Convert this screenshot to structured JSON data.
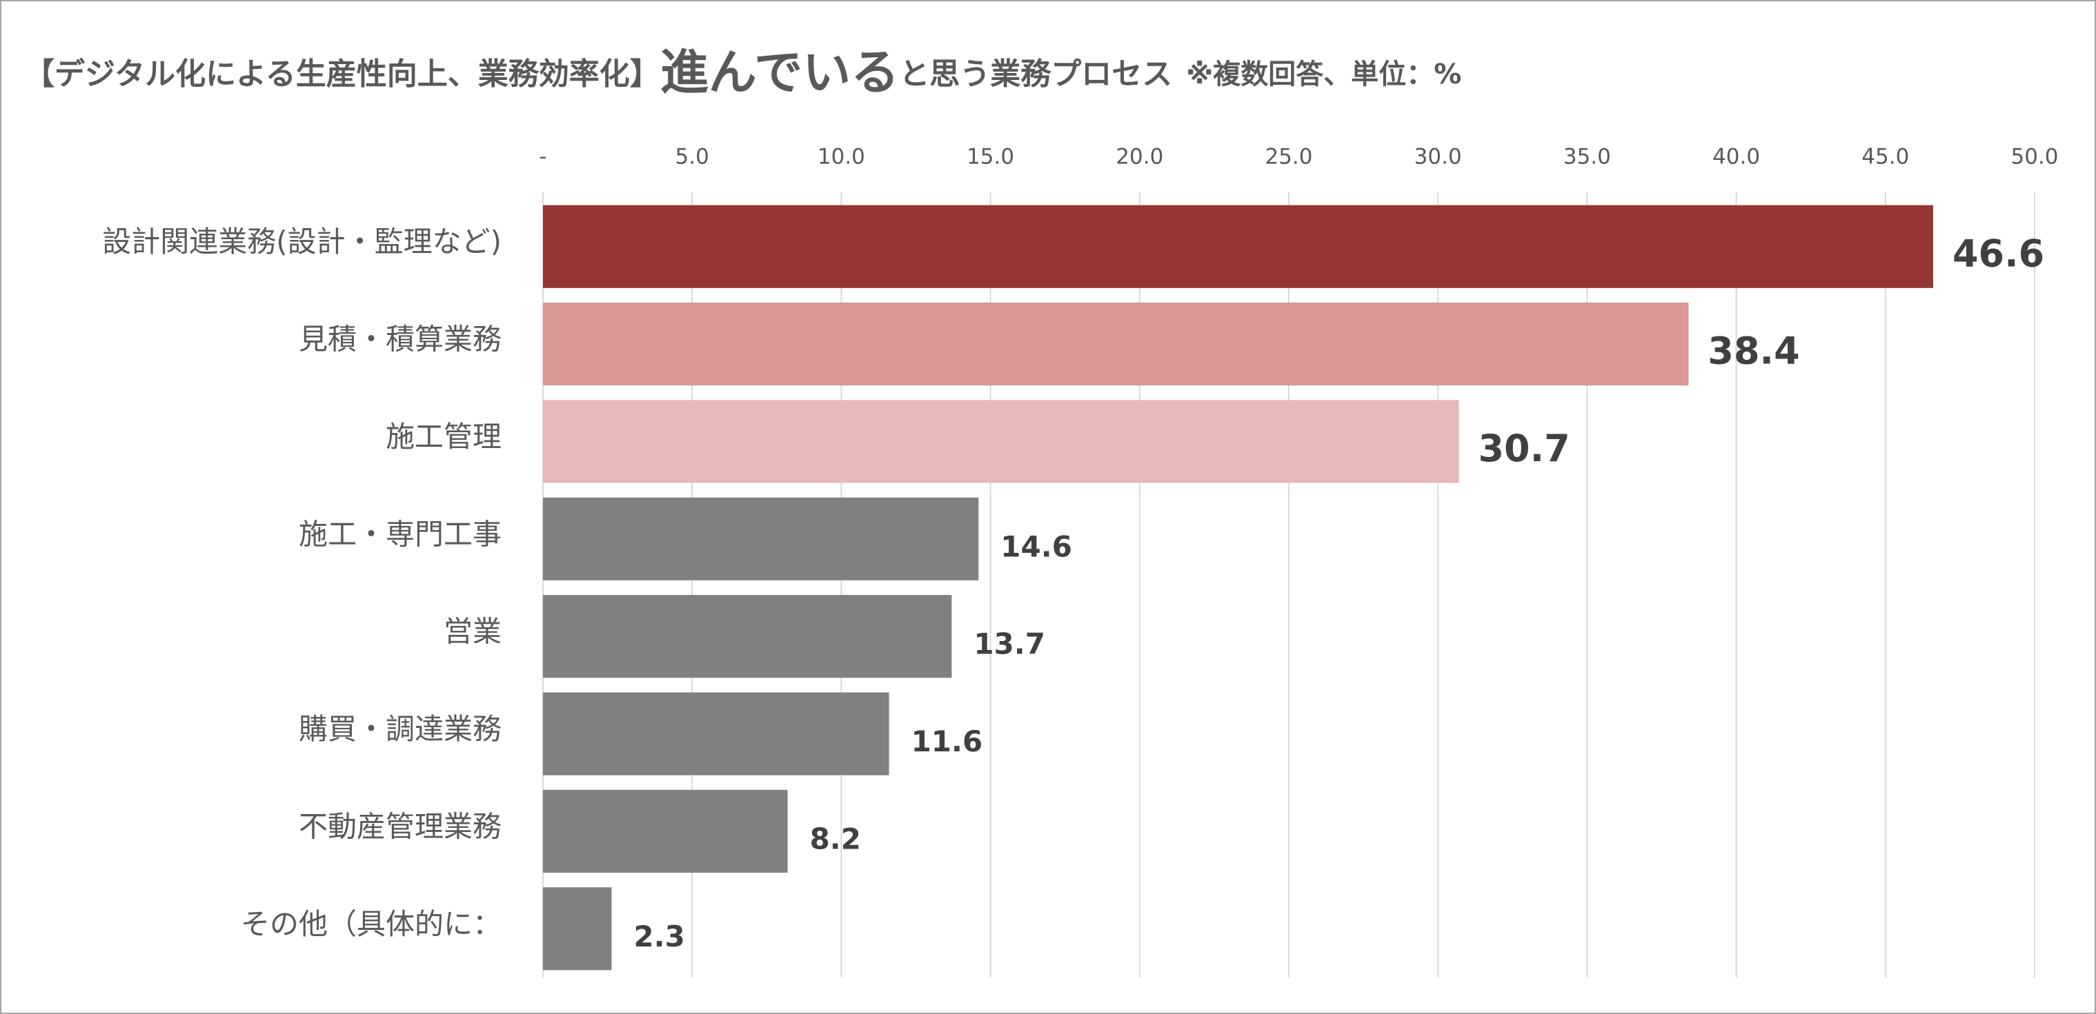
{
  "chart_data": {
    "type": "hbar",
    "title": [
      "【デジタル化による生産性向上、業務効率化】",
      "進んでいる",
      "と思う業務プロセス",
      "※複数回答、単位：%"
    ],
    "categories": [
      "設計関連業務(設計・監理など)",
      "見積・積算業務",
      "施工管理",
      "施工・専門工事",
      "営業",
      "購買・調達業務",
      "不動産管理業務",
      "その他（具体的に："
    ],
    "values": [
      46.6,
      38.4,
      30.7,
      14.6,
      13.7,
      11.6,
      8.2,
      2.3
    ],
    "colors": [
      "#963634",
      "#da9694",
      "#e6b8b7",
      "#808080",
      "#808080",
      "#808080",
      "#808080",
      "#808080"
    ],
    "xlim": [
      0,
      50
    ],
    "xticks": [
      {
        "value": 0,
        "label": "-"
      },
      {
        "value": 5,
        "label": "5.0"
      },
      {
        "value": 10,
        "label": "10.0"
      },
      {
        "value": 15,
        "label": "15.0"
      },
      {
        "value": 20,
        "label": "20.0"
      },
      {
        "value": 25,
        "label": "25.0"
      },
      {
        "value": 30,
        "label": "30.0"
      },
      {
        "value": 35,
        "label": "35.0"
      },
      {
        "value": 40,
        "label": "40.0"
      },
      {
        "value": 45,
        "label": "45.0"
      },
      {
        "value": 50,
        "label": "50.0"
      }
    ],
    "grid": true
  }
}
